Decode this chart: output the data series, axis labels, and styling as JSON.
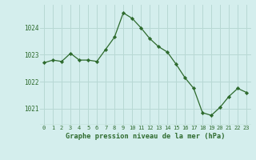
{
  "x": [
    0,
    1,
    2,
    3,
    4,
    5,
    6,
    7,
    8,
    9,
    10,
    11,
    12,
    13,
    14,
    15,
    16,
    17,
    18,
    19,
    20,
    21,
    22,
    23
  ],
  "y": [
    1022.7,
    1022.8,
    1022.75,
    1023.05,
    1022.8,
    1022.8,
    1022.75,
    1023.2,
    1023.65,
    1024.55,
    1024.35,
    1024.0,
    1023.6,
    1023.3,
    1023.1,
    1022.65,
    1022.15,
    1021.75,
    1020.85,
    1020.75,
    1021.05,
    1021.45,
    1021.75,
    1021.6
  ],
  "line_color": "#2d6a2d",
  "marker": "D",
  "marker_size": 2.2,
  "background_color": "#d4eeed",
  "grid_color": "#b8d8d4",
  "xlabel": "Graphe pression niveau de la mer (hPa)",
  "xlabel_color": "#2d6a2d",
  "tick_color": "#2d6a2d",
  "ylim": [
    1020.4,
    1024.85
  ],
  "yticks": [
    1021,
    1022,
    1023,
    1024
  ],
  "xlim": [
    -0.5,
    23.5
  ],
  "xticks": [
    0,
    1,
    2,
    3,
    4,
    5,
    6,
    7,
    8,
    9,
    10,
    11,
    12,
    13,
    14,
    15,
    16,
    17,
    18,
    19,
    20,
    21,
    22,
    23
  ]
}
